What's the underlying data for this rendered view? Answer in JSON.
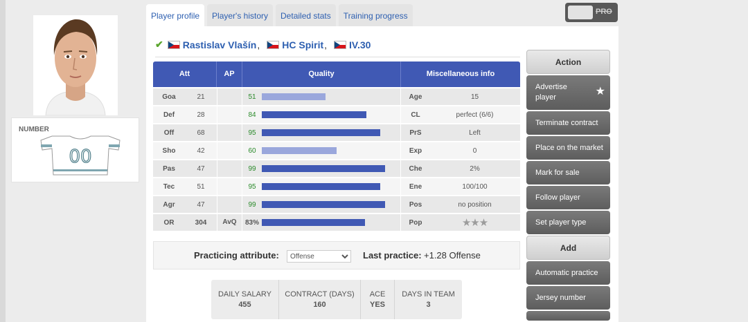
{
  "tabs": [
    {
      "label": "Player profile",
      "active": true
    },
    {
      "label": "Player's history",
      "active": false
    },
    {
      "label": "Detailed stats",
      "active": false
    },
    {
      "label": "Training progress",
      "active": false
    }
  ],
  "pro_toggle": {
    "label": "PRO"
  },
  "number_card": {
    "label": "NUMBER",
    "number": "00"
  },
  "player": {
    "name": "Rastislav Vlašín",
    "team": "HC Spirit",
    "league": "IV.30",
    "nationality_flag": "czech-flag-icon"
  },
  "stats_table": {
    "headers": {
      "att": "Att",
      "ap": "AP",
      "quality": "Quality",
      "misc": "Miscellaneous info"
    },
    "rows": [
      {
        "att": "Goa",
        "value": "21",
        "ap": "",
        "quality": "51",
        "quality_fraction": 0.51,
        "light": true,
        "misc_label": "Age",
        "misc_value": "15"
      },
      {
        "att": "Def",
        "value": "28",
        "ap": "",
        "quality": "84",
        "quality_fraction": 0.84,
        "light": false,
        "misc_label": "CL",
        "misc_value": "perfect (6/6)"
      },
      {
        "att": "Off",
        "value": "68",
        "ap": "",
        "quality": "95",
        "quality_fraction": 0.95,
        "light": false,
        "misc_label": "PrS",
        "misc_value": "Left"
      },
      {
        "att": "Sho",
        "value": "42",
        "ap": "",
        "quality": "60",
        "quality_fraction": 0.6,
        "light": true,
        "misc_label": "Exp",
        "misc_value": "0"
      },
      {
        "att": "Pas",
        "value": "47",
        "ap": "",
        "quality": "99",
        "quality_fraction": 0.99,
        "light": false,
        "misc_label": "Che",
        "misc_value": "2%"
      },
      {
        "att": "Tec",
        "value": "51",
        "ap": "",
        "quality": "95",
        "quality_fraction": 0.95,
        "light": false,
        "misc_label": "Ene",
        "misc_value": "100/100"
      },
      {
        "att": "Agr",
        "value": "47",
        "ap": "",
        "quality": "99",
        "quality_fraction": 0.99,
        "light": false,
        "misc_label": "Pos",
        "misc_value": "no position"
      }
    ],
    "total": {
      "att": "OR",
      "value": "304",
      "ap": "AvQ",
      "quality": "83%",
      "quality_fraction": 0.83,
      "misc_label": "Pop",
      "stars": "★★★",
      "stars_filled": 0
    }
  },
  "practice": {
    "attribute_label": "Practicing attribute:",
    "attribute_selected": "Offense",
    "last_label": "Last practice:",
    "last_value": "+1.28 Offense"
  },
  "info": [
    {
      "key": "DAILY SALARY",
      "value": "455"
    },
    {
      "key": "CONTRACT (DAYS)",
      "value": "160"
    },
    {
      "key": "ACE",
      "value": "YES"
    },
    {
      "key": "DAYS IN TEAM",
      "value": "3"
    }
  ],
  "actions": {
    "action_header": "Action",
    "action_items": [
      "Advertise player",
      "Terminate contract",
      "Place on the market",
      "Mark for sale",
      "Follow player",
      "Set player type"
    ],
    "add_header": "Add",
    "add_items": [
      "Automatic practice",
      "Jersey number"
    ]
  },
  "colors": {
    "accent": "#4059b4",
    "link": "#2d5fb0",
    "quality_green": "#2a8a2a",
    "button_gray": "#6b6b6b"
  }
}
